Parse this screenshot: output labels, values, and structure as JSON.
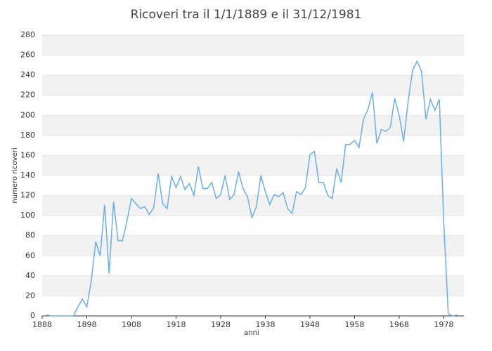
{
  "chart_data": {
    "type": "line",
    "title": "Ricoveri tra il 1/1/1889 e il 31/12/1981",
    "x_label": "anni",
    "y_label": "numero ricoveri",
    "x": [
      1889,
      1890,
      1891,
      1892,
      1893,
      1894,
      1895,
      1896,
      1897,
      1898,
      1899,
      1900,
      1901,
      1902,
      1903,
      1904,
      1905,
      1906,
      1907,
      1908,
      1909,
      1910,
      1911,
      1912,
      1913,
      1914,
      1915,
      1916,
      1917,
      1918,
      1919,
      1920,
      1921,
      1922,
      1923,
      1924,
      1925,
      1926,
      1927,
      1928,
      1929,
      1930,
      1931,
      1932,
      1933,
      1934,
      1935,
      1936,
      1937,
      1938,
      1939,
      1940,
      1941,
      1942,
      1943,
      1944,
      1945,
      1946,
      1947,
      1948,
      1949,
      1950,
      1951,
      1952,
      1953,
      1954,
      1955,
      1956,
      1957,
      1958,
      1959,
      1960,
      1961,
      1962,
      1963,
      1964,
      1965,
      1966,
      1967,
      1968,
      1969,
      1970,
      1971,
      1972,
      1973,
      1974,
      1975,
      1976,
      1977,
      1978,
      1979,
      1980,
      1981
    ],
    "series": [
      {
        "color": "#6aaeed",
        "values": [
          1,
          0,
          0,
          0,
          0,
          0,
          0,
          9,
          17,
          9,
          35,
          74,
          60,
          111,
          42,
          114,
          75,
          75,
          95,
          117,
          112,
          107,
          109,
          101,
          108,
          142,
          112,
          107,
          139,
          128,
          139,
          126,
          132,
          120,
          149,
          127,
          127,
          133,
          117,
          121,
          140,
          116,
          121,
          144,
          127,
          119,
          98,
          109,
          140,
          124,
          111,
          121,
          119,
          123,
          107,
          102,
          124,
          121,
          128,
          161,
          164,
          133,
          133,
          120,
          117,
          147,
          133,
          171,
          171,
          175,
          168,
          196,
          206,
          223,
          172,
          186,
          184,
          188,
          217,
          200,
          174,
          214,
          245,
          254,
          244,
          196,
          216,
          205,
          216,
          92,
          2,
          0,
          1
        ]
      }
    ],
    "xlim": [
      1888,
      1982.5
    ],
    "xticks": [
      1888,
      1898,
      1908,
      1918,
      1928,
      1938,
      1948,
      1958,
      1968,
      1978
    ],
    "ylim": [
      0,
      280
    ],
    "yticks": [
      0,
      20,
      40,
      60,
      80,
      100,
      120,
      140,
      160,
      180,
      200,
      220,
      240,
      260,
      280
    ],
    "grid": "banded"
  }
}
